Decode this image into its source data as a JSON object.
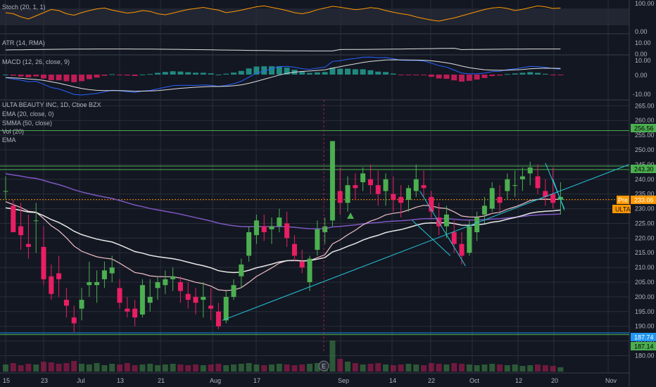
{
  "colors": {
    "background": "#131722",
    "grid": "#2a2e39",
    "text": "#b2b5be",
    "up": "#4caf50",
    "down": "#e91e63",
    "vol_up": "#4caf5070",
    "vol_down": "#e91e6370",
    "ema20": "#f0c0c8",
    "smma50": "#7e57c2",
    "ema_white": "#e8e8e8",
    "trend": "#26c6da",
    "level": "#4caf50",
    "pre": "#ff9800",
    "ulta_badge": "#ff9800",
    "stoch": "#ff9800",
    "atr": "#e0e0e0",
    "macd": "#2962ff",
    "signal": "#e0e0e0",
    "level_blue": "#2196f3"
  },
  "panels": {
    "stoch": {
      "label": "Stoch (20, 1, 1)",
      "ticks": [
        "100.00",
        "0.00"
      ]
    },
    "atr": {
      "label": "ATR (14, RMA)",
      "ticks": [
        "10.00",
        "0.00"
      ]
    },
    "macd": {
      "label": "MACD (12, 26, close, 9)",
      "ticks": [
        "10.00",
        "0.00",
        "-10.00"
      ]
    },
    "main": {
      "title": "ULTA BEAUTY INC, 1D, Cboe BZX",
      "indicators": [
        "EMA (20, close, 0)",
        "SMMA (50, close)",
        "Vol (20)",
        "EMA"
      ]
    }
  },
  "price_badges": {
    "level_top": "256.56",
    "level_mid": "243.30",
    "pre_label": "Pre",
    "pre_value": "233.06",
    "ticker": "ULTA",
    "low1": "187.74",
    "low2": "187.14"
  },
  "earnings_marker": "E",
  "x_axis": [
    "15",
    "23",
    "Jul",
    "13",
    "21",
    "Aug",
    "17",
    "Sep",
    "14",
    "22",
    "Oct",
    "12",
    "20",
    "Nov"
  ],
  "chart_data": {
    "type": "candlestick",
    "title": "ULTA BEAUTY INC, 1D, Cboe BZX",
    "y_ticks": [
      "265.00",
      "260.00",
      "255.00",
      "250.00",
      "245.00",
      "240.00",
      "235.00",
      "230.00",
      "225.00",
      "220.00",
      "215.00",
      "210.00",
      "205.00",
      "200.00",
      "195.00",
      "190.00",
      "185.00",
      "180.00"
    ],
    "ylim": [
      177,
      267
    ],
    "levels": [
      256.56,
      243.3,
      233.06,
      187.74,
      187.14
    ],
    "candles": [
      [
        236,
        241,
        233,
        236
      ],
      [
        231,
        233,
        222,
        222
      ],
      [
        224,
        232,
        216,
        221
      ],
      [
        218,
        228,
        213,
        217
      ],
      [
        226,
        232,
        215,
        226
      ],
      [
        217,
        224,
        204,
        206
      ],
      [
        207,
        211,
        199,
        201
      ],
      [
        208,
        214,
        200,
        206
      ],
      [
        199,
        203,
        193,
        197
      ],
      [
        193,
        197,
        188,
        191
      ],
      [
        196,
        203,
        192,
        199
      ],
      [
        204,
        212,
        200,
        205
      ],
      [
        204,
        209,
        198,
        205
      ],
      [
        206,
        212,
        203,
        209
      ],
      [
        208,
        214,
        205,
        210
      ],
      [
        203,
        206,
        196,
        198
      ],
      [
        196,
        200,
        193,
        195
      ],
      [
        196,
        199,
        190,
        193
      ],
      [
        194,
        206,
        193,
        204
      ],
      [
        198,
        206,
        195,
        200
      ],
      [
        203,
        207,
        199,
        205
      ],
      [
        204,
        209,
        201,
        206
      ],
      [
        206,
        210,
        202,
        207
      ],
      [
        205,
        207,
        198,
        202
      ],
      [
        201,
        205,
        196,
        199
      ],
      [
        200,
        203,
        194,
        198
      ],
      [
        199,
        205,
        193,
        200
      ],
      [
        197,
        203,
        192,
        196
      ],
      [
        195,
        198,
        189,
        190
      ],
      [
        192,
        202,
        191,
        200
      ],
      [
        200,
        206,
        199,
        204
      ],
      [
        207,
        213,
        203,
        211
      ],
      [
        214,
        224,
        212,
        222
      ],
      [
        221,
        228,
        218,
        226
      ],
      [
        224,
        228,
        219,
        222
      ],
      [
        223,
        227,
        218,
        224
      ],
      [
        224,
        230,
        222,
        227
      ],
      [
        225,
        229,
        217,
        220
      ],
      [
        218,
        221,
        212,
        214
      ],
      [
        212,
        216,
        208,
        210
      ],
      [
        205,
        214,
        202,
        213
      ],
      [
        216,
        226,
        214,
        223
      ],
      [
        222,
        227,
        218,
        224
      ],
      [
        226,
        253,
        224,
        253
      ],
      [
        236,
        244,
        228,
        232
      ],
      [
        232,
        241,
        229,
        238
      ],
      [
        238,
        242,
        233,
        237
      ],
      [
        239,
        244,
        236,
        242
      ],
      [
        240,
        245,
        235,
        238
      ],
      [
        238,
        243,
        231,
        235
      ],
      [
        236,
        242,
        231,
        240
      ],
      [
        235,
        241,
        229,
        233
      ],
      [
        234,
        238,
        227,
        232
      ],
      [
        233,
        238,
        229,
        237
      ],
      [
        236,
        245,
        234,
        240
      ],
      [
        238,
        243,
        234,
        237
      ],
      [
        234,
        236,
        227,
        229
      ],
      [
        227,
        232,
        221,
        224
      ],
      [
        224,
        231,
        220,
        228
      ],
      [
        222,
        226,
        215,
        218
      ],
      [
        218,
        222,
        211,
        214
      ],
      [
        215,
        226,
        214,
        224
      ],
      [
        222,
        229,
        219,
        227
      ],
      [
        228,
        234,
        225,
        231
      ],
      [
        230,
        239,
        229,
        237
      ],
      [
        234,
        238,
        229,
        232
      ],
      [
        236,
        242,
        233,
        240
      ],
      [
        238,
        243,
        234,
        238
      ],
      [
        240,
        244,
        236,
        241
      ],
      [
        242,
        246,
        238,
        244
      ],
      [
        241,
        245,
        235,
        237
      ],
      [
        236,
        240,
        231,
        234
      ],
      [
        235,
        244,
        230,
        232
      ],
      [
        233,
        239,
        228,
        234
      ]
    ],
    "volume": [
      0.5,
      0.6,
      0.45,
      0.55,
      0.5,
      0.7,
      0.65,
      0.55,
      0.6,
      0.75,
      0.55,
      0.5,
      0.6,
      0.45,
      0.55,
      0.5,
      0.6,
      0.45,
      0.5,
      0.55,
      0.45,
      0.5,
      0.55,
      0.5,
      0.45,
      0.5,
      0.45,
      0.5,
      0.55,
      0.45,
      0.5,
      0.55,
      0.6,
      0.5,
      0.45,
      0.5,
      0.55,
      0.5,
      0.45,
      0.5,
      0.55,
      0.6,
      0.5,
      2.2,
      0.9,
      0.7,
      0.6,
      0.5,
      0.55,
      0.6,
      0.5,
      0.45,
      0.5,
      0.55,
      0.5,
      0.45,
      0.6,
      0.55,
      0.5,
      0.6,
      0.55,
      0.5,
      0.45,
      0.5,
      0.55,
      0.5,
      0.45,
      0.5,
      0.4,
      0.45,
      0.5,
      0.45,
      0.4,
      0.3
    ]
  }
}
